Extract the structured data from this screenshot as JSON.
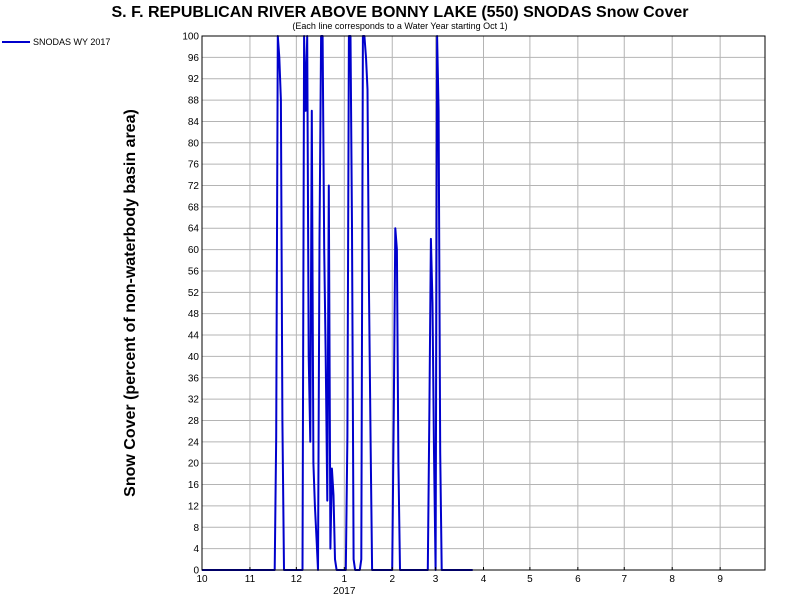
{
  "chart_data": {
    "type": "line",
    "title": "S. F. REPUBLICAN RIVER ABOVE BONNY LAKE (550) SNODAS Snow Cover",
    "subtitle": "(Each line corresponds to a Water Year starting Oct 1)",
    "xlabel": "",
    "ylabel": "Snow Cover (percent of non-waterbody basin area)",
    "ylim": [
      0,
      100
    ],
    "yticks": [
      0,
      4,
      8,
      12,
      16,
      20,
      24,
      28,
      32,
      36,
      40,
      44,
      48,
      52,
      56,
      60,
      64,
      68,
      72,
      76,
      80,
      84,
      88,
      92,
      96,
      100
    ],
    "xlim": [
      "2016-10-01",
      "2017-09-30"
    ],
    "xticks": [
      {
        "date": "2016-10-01",
        "label": "10"
      },
      {
        "date": "2016-11-01",
        "label": "11"
      },
      {
        "date": "2016-12-01",
        "label": "12"
      },
      {
        "date": "2017-01-01",
        "label": "1"
      },
      {
        "date": "2017-02-01",
        "label": "2"
      },
      {
        "date": "2017-03-01",
        "label": "3"
      },
      {
        "date": "2017-04-01",
        "label": "4"
      },
      {
        "date": "2017-05-01",
        "label": "5"
      },
      {
        "date": "2017-06-01",
        "label": "6"
      },
      {
        "date": "2017-07-01",
        "label": "7"
      },
      {
        "date": "2017-08-01",
        "label": "8"
      },
      {
        "date": "2017-09-01",
        "label": "9"
      }
    ],
    "year_label": {
      "date": "2017-01-01",
      "label": "2017"
    },
    "grid": true,
    "legend_position": "top-left",
    "series": [
      {
        "name": "SNODAS WY 2017",
        "color": "#0000cc",
        "points": [
          [
            "2016-10-01",
            0
          ],
          [
            "2016-11-17",
            0
          ],
          [
            "2016-11-18",
            25
          ],
          [
            "2016-11-19",
            100
          ],
          [
            "2016-11-20",
            96
          ],
          [
            "2016-11-21",
            88
          ],
          [
            "2016-11-22",
            28
          ],
          [
            "2016-11-23",
            0
          ],
          [
            "2016-12-05",
            0
          ],
          [
            "2016-12-06",
            100
          ],
          [
            "2016-12-07",
            86
          ],
          [
            "2016-12-08",
            100
          ],
          [
            "2016-12-09",
            40
          ],
          [
            "2016-12-10",
            24
          ],
          [
            "2016-12-11",
            86
          ],
          [
            "2016-12-12",
            20
          ],
          [
            "2016-12-13",
            12
          ],
          [
            "2016-12-14",
            6
          ],
          [
            "2016-12-15",
            0
          ],
          [
            "2016-12-16",
            62
          ],
          [
            "2016-12-17",
            100
          ],
          [
            "2016-12-18",
            100
          ],
          [
            "2016-12-19",
            60
          ],
          [
            "2016-12-20",
            40
          ],
          [
            "2016-12-21",
            13
          ],
          [
            "2016-12-22",
            72
          ],
          [
            "2016-12-23",
            4
          ],
          [
            "2016-12-24",
            19
          ],
          [
            "2016-12-25",
            14
          ],
          [
            "2016-12-26",
            2
          ],
          [
            "2016-12-27",
            0
          ],
          [
            "2017-01-02",
            0
          ],
          [
            "2017-01-03",
            25
          ],
          [
            "2017-01-04",
            100
          ],
          [
            "2017-01-05",
            100
          ],
          [
            "2017-01-06",
            64
          ],
          [
            "2017-01-07",
            2
          ],
          [
            "2017-01-08",
            0
          ],
          [
            "2017-01-11",
            0
          ],
          [
            "2017-01-12",
            2
          ],
          [
            "2017-01-13",
            100
          ],
          [
            "2017-01-14",
            100
          ],
          [
            "2017-01-15",
            96
          ],
          [
            "2017-01-16",
            90
          ],
          [
            "2017-01-17",
            52
          ],
          [
            "2017-01-18",
            24
          ],
          [
            "2017-01-19",
            0
          ],
          [
            "2017-02-01",
            0
          ],
          [
            "2017-02-02",
            30
          ],
          [
            "2017-02-03",
            64
          ],
          [
            "2017-02-04",
            60
          ],
          [
            "2017-02-05",
            20
          ],
          [
            "2017-02-06",
            0
          ],
          [
            "2017-02-24",
            0
          ],
          [
            "2017-02-25",
            30
          ],
          [
            "2017-02-26",
            62
          ],
          [
            "2017-02-27",
            50
          ],
          [
            "2017-02-28",
            22
          ],
          [
            "2017-03-01",
            0
          ],
          [
            "2017-03-02",
            100
          ],
          [
            "2017-03-03",
            86
          ],
          [
            "2017-03-04",
            22
          ],
          [
            "2017-03-05",
            0
          ],
          [
            "2017-03-25",
            0
          ]
        ]
      }
    ]
  }
}
